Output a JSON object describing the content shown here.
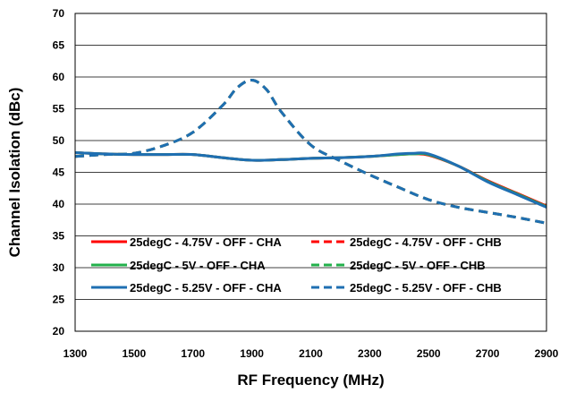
{
  "chart_data": {
    "type": "line",
    "xlabel": "RF Frequency (MHz)",
    "ylabel": "Channel Isolation (dBc)",
    "xlim": [
      1300,
      2900
    ],
    "ylim": [
      20,
      70
    ],
    "xticks": [
      1300,
      1500,
      1700,
      1900,
      2100,
      2300,
      2500,
      2700,
      2900
    ],
    "yticks": [
      20,
      25,
      30,
      35,
      40,
      45,
      50,
      55,
      60,
      65,
      70
    ],
    "xtick_labels": [
      "1300",
      "1500",
      "1700",
      "1900",
      "2100",
      "2300",
      "2500",
      "2700",
      "2900"
    ],
    "ytick_labels": [
      "20",
      "25",
      "30",
      "35",
      "40",
      "45",
      "50",
      "55",
      "60",
      "65",
      "70"
    ],
    "grid": "horizontal",
    "legend_position": "bottom, inside plot",
    "series": [
      {
        "name": "25degC - 4.75V - OFF - CHA",
        "color": "#ff0000",
        "dash": "solid",
        "x": [
          1300,
          1400,
          1500,
          1600,
          1700,
          1800,
          1900,
          2000,
          2100,
          2200,
          2300,
          2400,
          2450,
          2500,
          2600,
          2700,
          2800,
          2900
        ],
        "y": [
          48.1,
          47.9,
          47.8,
          47.8,
          47.8,
          47.3,
          46.9,
          47.0,
          47.2,
          47.3,
          47.5,
          47.8,
          47.9,
          47.7,
          46.0,
          43.7,
          41.7,
          39.7
        ]
      },
      {
        "name": "25degC - 4.75V - OFF - CHB",
        "color": "#ff0000",
        "dash": "dashed",
        "x": [
          1300,
          1400,
          1500,
          1600,
          1700,
          1800,
          1850,
          1900,
          1950,
          2000,
          2100,
          2200,
          2300,
          2400,
          2500,
          2600,
          2700,
          2800,
          2900
        ],
        "y": [
          47.5,
          47.8,
          48.0,
          49.2,
          51.3,
          55.5,
          58.3,
          59.5,
          58.0,
          54.5,
          49.3,
          46.8,
          44.6,
          42.6,
          40.7,
          39.5,
          38.7,
          37.9,
          37.0
        ]
      },
      {
        "name": "25degC - 5V - OFF - CHA",
        "color": "#22b04b",
        "dash": "solid",
        "x": [
          1300,
          1400,
          1500,
          1600,
          1700,
          1800,
          1900,
          2000,
          2100,
          2200,
          2300,
          2400,
          2450,
          2500,
          2600,
          2700,
          2800,
          2900
        ],
        "y": [
          48.1,
          47.9,
          47.8,
          47.8,
          47.8,
          47.3,
          46.9,
          47.0,
          47.2,
          47.3,
          47.5,
          47.8,
          47.9,
          47.8,
          46.0,
          43.6,
          41.6,
          39.6
        ]
      },
      {
        "name": "25degC - 5V - OFF - CHB",
        "color": "#22b04b",
        "dash": "dashed",
        "x": [
          1300,
          1400,
          1500,
          1600,
          1700,
          1800,
          1850,
          1900,
          1950,
          2000,
          2100,
          2200,
          2300,
          2400,
          2500,
          2600,
          2700,
          2800,
          2900
        ],
        "y": [
          47.5,
          47.8,
          48.0,
          49.2,
          51.3,
          55.5,
          58.3,
          59.5,
          58.0,
          54.5,
          49.3,
          46.8,
          44.6,
          42.6,
          40.7,
          39.5,
          38.7,
          37.9,
          37.0
        ]
      },
      {
        "name": "25degC - 5.25V - OFF - CHA",
        "color": "#1f6fb2",
        "dash": "solid",
        "x": [
          1300,
          1400,
          1500,
          1600,
          1700,
          1800,
          1900,
          2000,
          2100,
          2200,
          2300,
          2400,
          2450,
          2500,
          2600,
          2700,
          2800,
          2900
        ],
        "y": [
          48.1,
          47.9,
          47.8,
          47.8,
          47.8,
          47.3,
          46.9,
          47.0,
          47.2,
          47.3,
          47.5,
          47.9,
          48.0,
          47.9,
          46.0,
          43.5,
          41.5,
          39.5
        ]
      },
      {
        "name": "25degC - 5.25V - OFF - CHB",
        "color": "#1f6fb2",
        "dash": "dashed",
        "x": [
          1300,
          1400,
          1500,
          1600,
          1700,
          1800,
          1850,
          1900,
          1950,
          2000,
          2100,
          2200,
          2300,
          2400,
          2500,
          2600,
          2700,
          2800,
          2900
        ],
        "y": [
          47.5,
          47.8,
          48.0,
          49.2,
          51.3,
          55.5,
          58.3,
          59.5,
          58.0,
          54.5,
          49.3,
          46.8,
          44.6,
          42.6,
          40.7,
          39.5,
          38.7,
          37.9,
          37.0
        ]
      }
    ]
  }
}
